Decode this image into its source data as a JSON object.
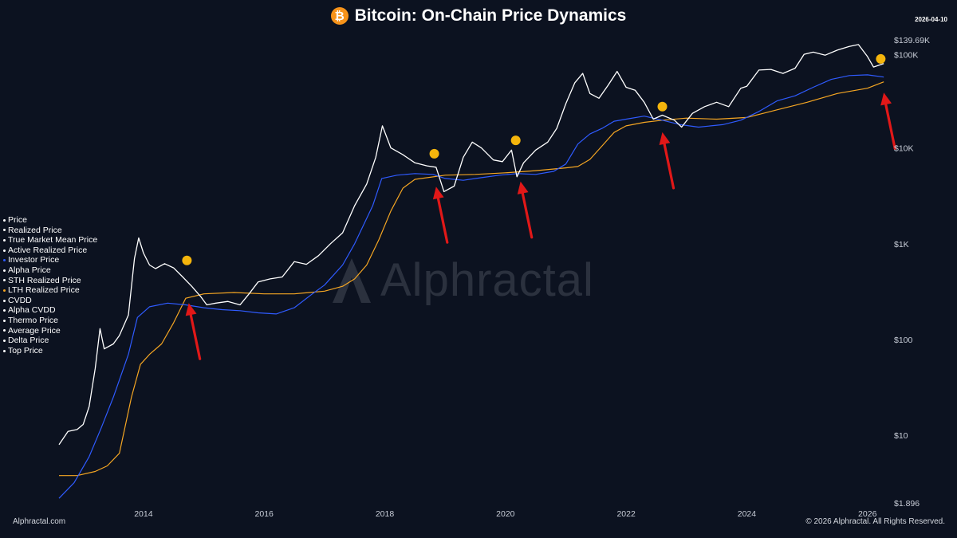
{
  "header": {
    "title": "Bitcoin: On-Chain Price Dynamics",
    "date": "2026-04-10"
  },
  "watermark": {
    "text": "Alphractal"
  },
  "footer": {
    "left": "Alphractal.com",
    "right": "© 2026 Alphractal. All Rights Reserved."
  },
  "legend": [
    {
      "label": "Price",
      "color": "#ffffff"
    },
    {
      "label": "Realized Price",
      "color": "#ffffff"
    },
    {
      "label": "True Market Mean Price",
      "color": "#ffffff"
    },
    {
      "label": "Active Realized Price",
      "color": "#ffffff"
    },
    {
      "label": "Investor Price",
      "color": "#2f5bff"
    },
    {
      "label": "Alpha Price",
      "color": "#ffffff"
    },
    {
      "label": "STH Realized Price",
      "color": "#ffffff"
    },
    {
      "label": "LTH Realized Price",
      "color": "#f5a623"
    },
    {
      "label": "CVDD",
      "color": "#ffffff"
    },
    {
      "label": "Alpha CVDD",
      "color": "#ffffff"
    },
    {
      "label": "Thermo Price",
      "color": "#ffffff"
    },
    {
      "label": "Average Price",
      "color": "#ffffff"
    },
    {
      "label": "Delta Price",
      "color": "#ffffff"
    },
    {
      "label": "Top Price",
      "color": "#ffffff"
    }
  ],
  "chart_data": {
    "type": "line",
    "title": "Bitcoin: On-Chain Price Dynamics",
    "yscale": "log",
    "xlim": [
      2012.6,
      2026.4
    ],
    "ylim": [
      1.896,
      139690
    ],
    "x_ticks": [
      2014,
      2016,
      2018,
      2020,
      2022,
      2024,
      2026
    ],
    "x_tick_labels": [
      "2014",
      "2016",
      "2018",
      "2020",
      "2022",
      "2024",
      "2026"
    ],
    "y_ticks": [
      1.896,
      10,
      100,
      1000,
      10000,
      100000,
      139690
    ],
    "y_tick_labels": [
      "$1.896",
      "$10",
      "$100",
      "$1K",
      "$10K",
      "$100K",
      "$139.69K"
    ],
    "grid": false,
    "legend_position": "left",
    "series": [
      {
        "name": "Price",
        "color": "#ffffff",
        "x": [
          2012.6,
          2012.75,
          2012.9,
          2013.0,
          2013.1,
          2013.2,
          2013.28,
          2013.35,
          2013.5,
          2013.6,
          2013.75,
          2013.85,
          2013.92,
          2014.0,
          2014.1,
          2014.2,
          2014.35,
          2014.5,
          2014.65,
          2014.8,
          2014.95,
          2015.05,
          2015.2,
          2015.4,
          2015.6,
          2015.75,
          2015.9,
          2016.1,
          2016.3,
          2016.5,
          2016.7,
          2016.9,
          2017.1,
          2017.3,
          2017.5,
          2017.7,
          2017.85,
          2017.96,
          2018.1,
          2018.3,
          2018.5,
          2018.7,
          2018.85,
          2018.98,
          2019.15,
          2019.3,
          2019.45,
          2019.6,
          2019.8,
          2019.95,
          2020.1,
          2020.19,
          2020.3,
          2020.5,
          2020.7,
          2020.85,
          2021.0,
          2021.15,
          2021.28,
          2021.4,
          2021.55,
          2021.7,
          2021.85,
          2022.0,
          2022.15,
          2022.3,
          2022.45,
          2022.6,
          2022.8,
          2022.92,
          2023.1,
          2023.3,
          2023.5,
          2023.7,
          2023.9,
          2024.0,
          2024.2,
          2024.4,
          2024.6,
          2024.8,
          2024.95,
          2025.1,
          2025.3,
          2025.5,
          2025.7,
          2025.85,
          2026.0,
          2026.1,
          2026.27
        ],
        "y": [
          8,
          11,
          11.5,
          13,
          20,
          50,
          130,
          80,
          90,
          110,
          180,
          700,
          1150,
          800,
          600,
          550,
          620,
          560,
          450,
          360,
          280,
          230,
          240,
          250,
          230,
          300,
          400,
          430,
          450,
          650,
          610,
          750,
          1000,
          1300,
          2500,
          4200,
          8000,
          17000,
          10000,
          8500,
          7000,
          6500,
          6300,
          3500,
          4000,
          8000,
          11500,
          10000,
          7500,
          7200,
          9500,
          5000,
          7000,
          9500,
          11500,
          16000,
          29000,
          48000,
          60000,
          37000,
          33000,
          45000,
          63000,
          43000,
          40000,
          30000,
          20000,
          22000,
          19500,
          16500,
          23000,
          27000,
          30000,
          27000,
          42000,
          44000,
          65000,
          66000,
          60000,
          68000,
          95000,
          100000,
          93000,
          105000,
          115000,
          120000,
          90000,
          70000,
          76000
        ]
      },
      {
        "name": "Investor Price",
        "color": "#2f5bff",
        "x": [
          2012.6,
          2012.85,
          2013.1,
          2013.3,
          2013.5,
          2013.75,
          2013.9,
          2014.1,
          2014.4,
          2014.7,
          2015.0,
          2015.3,
          2015.6,
          2015.9,
          2016.2,
          2016.5,
          2016.8,
          2017.0,
          2017.3,
          2017.5,
          2017.8,
          2017.95,
          2018.2,
          2018.5,
          2018.8,
          2019.0,
          2019.3,
          2019.6,
          2019.9,
          2020.2,
          2020.5,
          2020.8,
          2021.0,
          2021.2,
          2021.4,
          2021.6,
          2021.8,
          2022.0,
          2022.3,
          2022.6,
          2022.9,
          2023.2,
          2023.6,
          2023.9,
          2024.2,
          2024.5,
          2024.8,
          2025.1,
          2025.4,
          2025.7,
          2026.0,
          2026.27
        ],
        "y": [
          2.2,
          3.2,
          6,
          12,
          25,
          70,
          170,
          220,
          240,
          230,
          215,
          205,
          200,
          190,
          185,
          215,
          300,
          370,
          600,
          1000,
          2500,
          4800,
          5200,
          5400,
          5300,
          4800,
          4600,
          4900,
          5200,
          5400,
          5300,
          5700,
          6800,
          11000,
          14000,
          16000,
          19000,
          20000,
          21500,
          19500,
          17500,
          16500,
          17500,
          19500,
          24000,
          31000,
          35000,
          43000,
          52000,
          57000,
          58000,
          55000
        ]
      },
      {
        "name": "LTH Realized Price",
        "color": "#f5a623",
        "x": [
          2012.6,
          2012.9,
          2013.2,
          2013.4,
          2013.6,
          2013.8,
          2013.95,
          2014.1,
          2014.3,
          2014.5,
          2014.7,
          2015.0,
          2015.5,
          2016.0,
          2016.5,
          2017.0,
          2017.3,
          2017.5,
          2017.7,
          2017.9,
          2018.1,
          2018.3,
          2018.5,
          2019.0,
          2019.5,
          2020.0,
          2020.5,
          2021.0,
          2021.2,
          2021.4,
          2021.6,
          2021.8,
          2022.0,
          2022.3,
          2022.6,
          2023.0,
          2023.5,
          2024.0,
          2024.5,
          2025.0,
          2025.5,
          2026.0,
          2026.27
        ],
        "y": [
          3.8,
          3.8,
          4.2,
          4.8,
          6.5,
          25,
          55,
          70,
          90,
          150,
          270,
          300,
          310,
          300,
          300,
          320,
          360,
          430,
          600,
          1100,
          2200,
          3800,
          4700,
          5200,
          5300,
          5500,
          5800,
          6200,
          6400,
          7600,
          10500,
          14500,
          17000,
          18500,
          19500,
          20500,
          20000,
          20800,
          25000,
          30000,
          37000,
          42000,
          49000
        ]
      }
    ],
    "annotations": [
      {
        "type": "marker",
        "x": 2014.72,
        "y": 670,
        "color": "#f5b50c"
      },
      {
        "type": "marker",
        "x": 2018.82,
        "y": 8700,
        "color": "#f5b50c"
      },
      {
        "type": "marker",
        "x": 2020.17,
        "y": 12000,
        "color": "#f5b50c"
      },
      {
        "type": "marker",
        "x": 2022.6,
        "y": 27000,
        "color": "#f5b50c"
      },
      {
        "type": "marker",
        "x": 2026.22,
        "y": 85000,
        "color": "#f5b50c"
      },
      {
        "type": "arrow",
        "x": 2014.75,
        "y": 280,
        "color": "#e11818"
      },
      {
        "type": "arrow",
        "x": 2018.85,
        "y": 4600,
        "color": "#e11818"
      },
      {
        "type": "arrow",
        "x": 2020.25,
        "y": 5200,
        "color": "#e11818"
      },
      {
        "type": "arrow",
        "x": 2022.6,
        "y": 17000,
        "color": "#e11818"
      },
      {
        "type": "arrow",
        "x": 2026.27,
        "y": 44000,
        "color": "#e11818"
      }
    ]
  }
}
